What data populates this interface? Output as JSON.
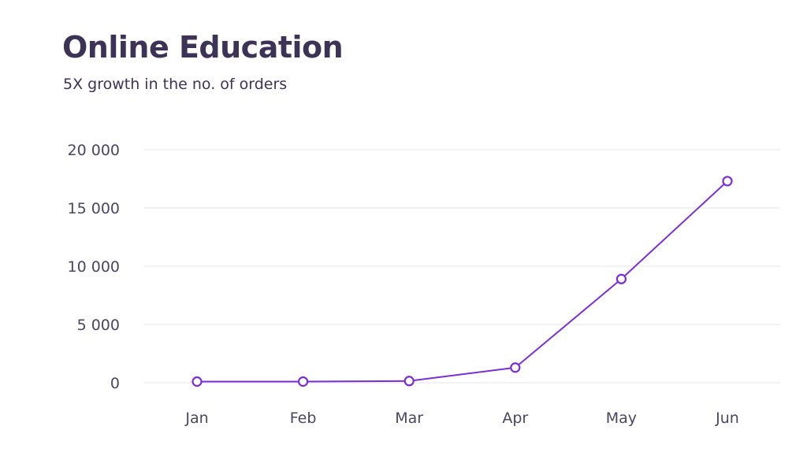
{
  "chart_data": {
    "type": "line",
    "title": "Online Education",
    "subtitle": "5X growth in the no. of orders",
    "xlabel": "",
    "ylabel": "",
    "categories": [
      "Jan",
      "Feb",
      "Mar",
      "Apr",
      "May",
      "Jun"
    ],
    "series": [
      {
        "values": [
          100,
          100,
          150,
          1300,
          8900,
          17300
        ]
      }
    ],
    "yticks": [
      0,
      5000,
      10000,
      15000,
      20000
    ],
    "ytick_labels": [
      "0",
      "5 000",
      "10 000",
      "15 000",
      "20 000"
    ],
    "ylim": [
      0,
      20000
    ],
    "grid": true,
    "legend": "none",
    "colors": {
      "line": "#7a2fd6",
      "grid": "#e6e4ea",
      "title": "#3d3356",
      "text": "#4a4560"
    }
  }
}
